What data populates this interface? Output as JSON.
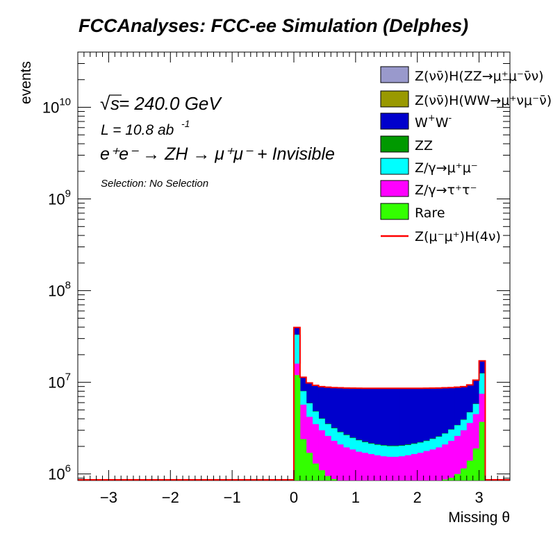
{
  "chart_data": {
    "type": "bar",
    "title": "FCCAnalyses: FCC-ee Simulation (Delphes)",
    "xlabel": "Missing θ",
    "ylabel": "events",
    "xlim": [
      -3.5,
      3.5
    ],
    "ylim": [
      850000,
      40000000000
    ],
    "log_y": true,
    "stacked": true,
    "x_ticks": [
      -3,
      -2,
      -1,
      0,
      1,
      2,
      3
    ],
    "y_ticks": [
      {
        "value": 1000000,
        "base": "10",
        "exp": "6"
      },
      {
        "value": 10000000,
        "base": "10",
        "exp": "7"
      },
      {
        "value": 100000000,
        "base": "10",
        "exp": "8"
      },
      {
        "value": 1000000000,
        "base": "10",
        "exp": "9"
      },
      {
        "value": 10000000000,
        "base": "10",
        "exp": "10"
      }
    ],
    "bin_start": 0.0,
    "bin_width": 0.1,
    "annotations": {
      "sqrt": "√",
      "energy_s": "s",
      "energy": " = 240.0 GeV",
      "lumi_base": "L = 10.8 ab",
      "lumi_exp": "-1",
      "process": "e⁺e⁻ → ZH → μ⁺μ⁻ + Invisible",
      "selection": "Selection: No Selection"
    },
    "legend_position": "top-right",
    "series": [
      {
        "name": "Rare",
        "legend": "Rare",
        "color": "#33ff00",
        "values": [
          12000000,
          2400000,
          1700000,
          1300000,
          1100000,
          950000,
          880000,
          850000,
          850000,
          850000,
          850000,
          850000,
          850000,
          850000,
          850000,
          850000,
          850000,
          850000,
          850000,
          850000,
          850000,
          850000,
          850000,
          850000,
          870000,
          910000,
          1000000,
          1150000,
          1400000,
          1900000,
          3700000
        ]
      },
      {
        "name": "Z/γ→τ⁺τ⁻",
        "legend": "Z/γ→τ⁺τ⁻",
        "color": "#ff00ff",
        "values": [
          16000000,
          5700000,
          4200000,
          3500000,
          3000000,
          2600000,
          2300000,
          2100000,
          1950000,
          1850000,
          1750000,
          1700000,
          1650000,
          1600000,
          1560000,
          1540000,
          1540000,
          1560000,
          1600000,
          1650000,
          1700000,
          1780000,
          1850000,
          1950000,
          2100000,
          2300000,
          2600000,
          3000000,
          3600000,
          4500000,
          7500000
        ]
      },
      {
        "name": "Z/γ→μ⁺μ⁻",
        "legend": "Z/γ→μ⁺μ⁻",
        "color": "#00ffff",
        "values": [
          33000000,
          8000000,
          5900000,
          4800000,
          4000000,
          3500000,
          3150000,
          2850000,
          2650000,
          2470000,
          2330000,
          2220000,
          2140000,
          2080000,
          2040000,
          2010000,
          2010000,
          2030000,
          2070000,
          2130000,
          2200000,
          2290000,
          2410000,
          2550000,
          2760000,
          3050000,
          3400000,
          3900000,
          4700000,
          5800000,
          12500000
        ]
      },
      {
        "name": "ZZ",
        "legend": "ZZ",
        "color": "#009900",
        "values": [
          33200000,
          8050000,
          5950000,
          4850000,
          4050000,
          3540000,
          3190000,
          2890000,
          2690000,
          2500000,
          2360000,
          2250000,
          2170000,
          2110000,
          2070000,
          2040000,
          2040000,
          2060000,
          2100000,
          2160000,
          2230000,
          2320000,
          2440000,
          2580000,
          2790000,
          3080000,
          3430000,
          3940000,
          4740000,
          5850000,
          12600000
        ]
      },
      {
        "name": "W⁺W⁻",
        "legend_base": "W",
        "legend_sup1": "+",
        "legend_mid": "W",
        "legend_sup2": "-",
        "color": "#0000cc",
        "values": [
          39500000,
          11300000,
          9800000,
          9200000,
          8900000,
          8800000,
          8700000,
          8650000,
          8600000,
          8580000,
          8560000,
          8550000,
          8540000,
          8540000,
          8540000,
          8540000,
          8540000,
          8540000,
          8540000,
          8540000,
          8550000,
          8560000,
          8580000,
          8600000,
          8650000,
          8700000,
          8800000,
          8900000,
          9300000,
          10500000,
          17000000
        ]
      },
      {
        "name": "Z(νν̄)H(WW→μ⁺νμ⁻ν̄)",
        "legend": "Z(νν̄)H(WW→μ⁺νμ⁻ν̄)",
        "color": "#999900",
        "values": [
          39550000,
          11320000,
          9820000,
          9220000,
          8920000,
          8820000,
          8720000,
          8670000,
          8620000,
          8600000,
          8580000,
          8570000,
          8560000,
          8560000,
          8560000,
          8560000,
          8560000,
          8560000,
          8560000,
          8560000,
          8570000,
          8580000,
          8600000,
          8620000,
          8670000,
          8720000,
          8820000,
          8920000,
          9320000,
          10520000,
          17050000
        ]
      },
      {
        "name": "Z(νν̄)H(ZZ→μ⁺μ⁻ν̄ν)",
        "legend": "Z(νν̄)H(ZZ→μ⁺μ⁻ν̄ν)",
        "color": "#9999cc",
        "values": [
          39600000,
          11340000,
          9840000,
          9240000,
          8940000,
          8840000,
          8740000,
          8690000,
          8640000,
          8620000,
          8600000,
          8590000,
          8580000,
          8580000,
          8580000,
          8580000,
          8580000,
          8580000,
          8580000,
          8580000,
          8590000,
          8600000,
          8620000,
          8640000,
          8690000,
          8740000,
          8840000,
          8940000,
          9340000,
          10540000,
          17100000
        ]
      }
    ],
    "signal": {
      "name": "Z(μ⁻μ⁺)H(4ν)",
      "legend": "Z(μ⁻μ⁺)H(4ν)",
      "color": "#ff0000",
      "values": [
        39650000,
        11360000,
        9860000,
        9260000,
        8960000,
        8860000,
        8760000,
        8710000,
        8660000,
        8640000,
        8620000,
        8610000,
        8600000,
        8600000,
        8600000,
        8600000,
        8600000,
        8600000,
        8600000,
        8600000,
        8610000,
        8620000,
        8640000,
        8660000,
        8710000,
        8760000,
        8860000,
        8960000,
        9360000,
        10560000,
        17150000
      ]
    }
  }
}
